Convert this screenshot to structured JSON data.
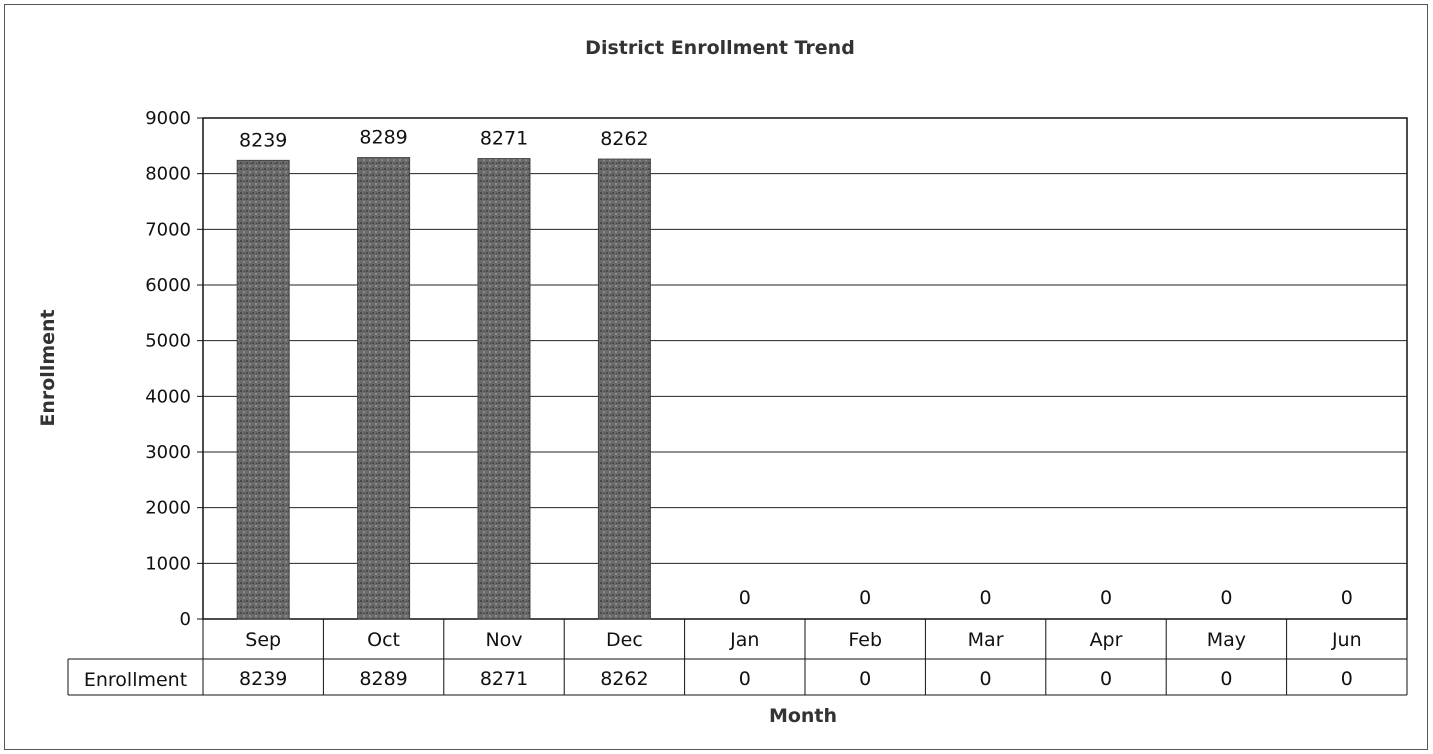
{
  "chart_data": {
    "type": "bar",
    "title": "District Enrollment Trend",
    "xlabel": "Month",
    "ylabel": "Enrollment",
    "categories": [
      "Sep",
      "Oct",
      "Nov",
      "Dec",
      "Jan",
      "Feb",
      "Mar",
      "Apr",
      "May",
      "Jun"
    ],
    "series": [
      {
        "name": "Enrollment",
        "values": [
          8239,
          8289,
          8271,
          8262,
          0,
          0,
          0,
          0,
          0,
          0
        ]
      }
    ],
    "ylim": [
      0,
      9000
    ],
    "yticks": [
      0,
      1000,
      2000,
      3000,
      4000,
      5000,
      6000,
      7000,
      8000,
      9000
    ],
    "grid": true,
    "data_table": true,
    "bar_color": "#6e6e6e"
  }
}
